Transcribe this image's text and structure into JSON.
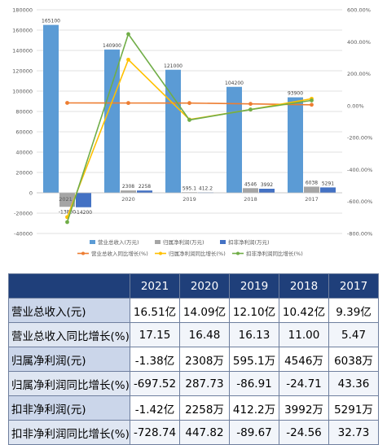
{
  "chart_data": {
    "type": "bar",
    "categories": [
      "2021",
      "2020",
      "2019",
      "2018",
      "2017"
    ],
    "y_left": {
      "ylim": [
        -40000,
        180000
      ],
      "ticks": [
        -40000,
        -20000,
        0,
        20000,
        40000,
        60000,
        80000,
        100000,
        120000,
        140000,
        160000,
        180000
      ]
    },
    "y_right": {
      "ylim": [
        -800,
        600
      ],
      "ticks": [
        "-800.00%",
        "-600.00%",
        "-400.00%",
        "-200.00%",
        "0.00%",
        "200.00%",
        "400.00%",
        "600.00%"
      ],
      "tick_values": [
        -800,
        -600,
        -400,
        -200,
        0,
        200,
        400,
        600
      ]
    },
    "bar_series": [
      {
        "name": "营业总收入(万元)",
        "color": "#5b9bd5",
        "values": [
          165100,
          140900,
          121000,
          104200,
          93900
        ],
        "labels": [
          "165100",
          "140900",
          "121000",
          "104200",
          "93900"
        ]
      },
      {
        "name": "归属净利润(万元)",
        "color": "#a5a5a5",
        "values": [
          -13800,
          2308,
          595.1,
          4546,
          6038
        ],
        "labels": [
          "-13800",
          "2308",
          "595.1",
          "4546",
          "6038"
        ]
      },
      {
        "name": "扣非净利润(万元)",
        "color": "#4472c4",
        "values": [
          -14200,
          2258,
          412.2,
          3992,
          5291
        ],
        "labels": [
          "-14200",
          "2258",
          "412.2",
          "3992",
          "5291"
        ]
      }
    ],
    "line_series": [
      {
        "name": "营业总收入同比增长(%)",
        "color": "#ed7d31",
        "values": [
          17.15,
          16.48,
          16.13,
          11.0,
          5.47
        ]
      },
      {
        "name": "归属净利润同比增长(%)",
        "color": "#ffc000",
        "values": [
          -697.52,
          287.73,
          -86.91,
          -24.71,
          43.36
        ]
      },
      {
        "name": "扣非净利润同比增长(%)",
        "color": "#70ad47",
        "values": [
          -728.74,
          447.82,
          -89.67,
          -24.56,
          32.73
        ]
      }
    ],
    "extra_label": "2021",
    "legend_position": "bottom",
    "grid": true
  },
  "table": {
    "years": [
      "2021",
      "2020",
      "2019",
      "2018",
      "2017"
    ],
    "rows": [
      {
        "label": "营业总收入(元)",
        "values": [
          "16.51亿",
          "14.09亿",
          "12.10亿",
          "10.42亿",
          "9.39亿"
        ]
      },
      {
        "label": "营业总收入同比增长(%)",
        "values": [
          "17.15",
          "16.48",
          "16.13",
          "11.00",
          "5.47"
        ]
      },
      {
        "label": "归属净利润(元)",
        "values": [
          "-1.38亿",
          "2308万",
          "595.1万",
          "4546万",
          "6038万"
        ]
      },
      {
        "label": "归属净利润同比增长(%)",
        "values": [
          "-697.52",
          "287.73",
          "-86.91",
          "-24.71",
          "43.36"
        ]
      },
      {
        "label": "扣非净利润(元)",
        "values": [
          "-1.42亿",
          "2258万",
          "412.2万",
          "3992万",
          "5291万"
        ]
      },
      {
        "label": "扣非净利润同比增长(%)",
        "values": [
          "-728.74",
          "447.82",
          "-89.67",
          "-24.56",
          "32.73"
        ]
      }
    ]
  }
}
